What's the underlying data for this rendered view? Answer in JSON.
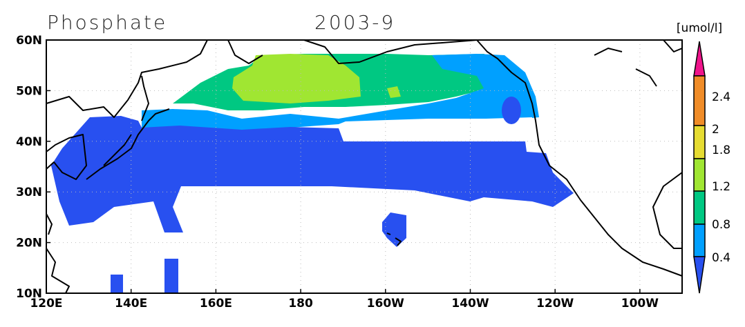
{
  "title": "Phosphate",
  "date": "2003-9",
  "unit": "[umol/l]",
  "x_axis": {
    "labels": [
      "120E",
      "140E",
      "160E",
      "180",
      "160W",
      "140W",
      "120W",
      "100W"
    ]
  },
  "y_axis": {
    "labels": [
      "10N",
      "20N",
      "30N",
      "40N",
      "50N",
      "60N"
    ]
  },
  "colorbar": {
    "labels": [
      "2.4",
      "2",
      "1.8",
      "1.2",
      "0.8",
      "0.4"
    ]
  }
}
